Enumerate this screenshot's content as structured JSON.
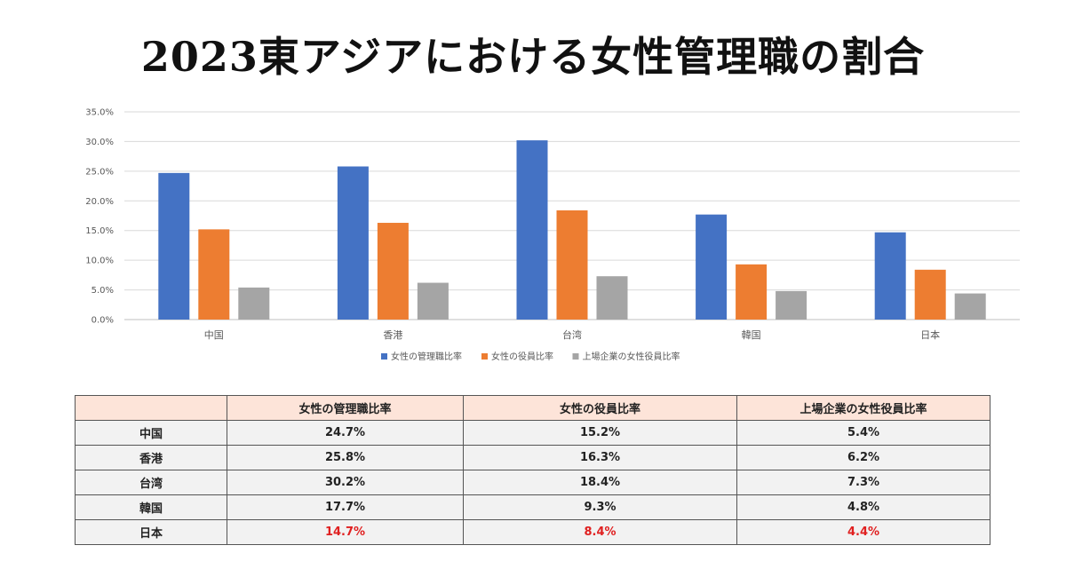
{
  "title": "2023東アジアにおける女性管理職の割合",
  "chart_data": {
    "type": "bar",
    "categories": [
      "中国",
      "香港",
      "台湾",
      "韓国",
      "日本"
    ],
    "series": [
      {
        "name": "女性の管理職比率",
        "values": [
          24.7,
          25.8,
          30.2,
          17.7,
          14.7
        ],
        "color": "#4472c4"
      },
      {
        "name": "女性の役員比率",
        "values": [
          15.2,
          16.3,
          18.4,
          9.3,
          8.4
        ],
        "color": "#ed7d31"
      },
      {
        "name": "上場企業の女性役員比率",
        "values": [
          5.4,
          6.2,
          7.3,
          4.8,
          4.4
        ],
        "color": "#a5a5a5"
      }
    ],
    "ylim": [
      0,
      35
    ],
    "yticks": [
      "0.0%",
      "5.0%",
      "10.0%",
      "15.0%",
      "20.0%",
      "25.0%",
      "30.0%",
      "35.0%"
    ],
    "grid": true,
    "legend": "bottom"
  },
  "table": {
    "headers": [
      "",
      "女性の管理職比率",
      "女性の役員比率",
      "上場企業の女性役員比率"
    ],
    "rows": [
      {
        "label": "中国",
        "cells": [
          "24.7%",
          "15.2%",
          "5.4%"
        ],
        "highlight": false
      },
      {
        "label": "香港",
        "cells": [
          "25.8%",
          "16.3%",
          "6.2%"
        ],
        "highlight": false
      },
      {
        "label": "台湾",
        "cells": [
          "30.2%",
          "18.4%",
          "7.3%"
        ],
        "highlight": false
      },
      {
        "label": "韓国",
        "cells": [
          "17.7%",
          "9.3%",
          "4.8%"
        ],
        "highlight": false
      },
      {
        "label": "日本",
        "cells": [
          "14.7%",
          "8.4%",
          "4.4%"
        ],
        "highlight": true
      }
    ],
    "highlight_color": "#e02020",
    "header_bg": "#fde4d9",
    "body_bg": "#f2f2f2"
  }
}
